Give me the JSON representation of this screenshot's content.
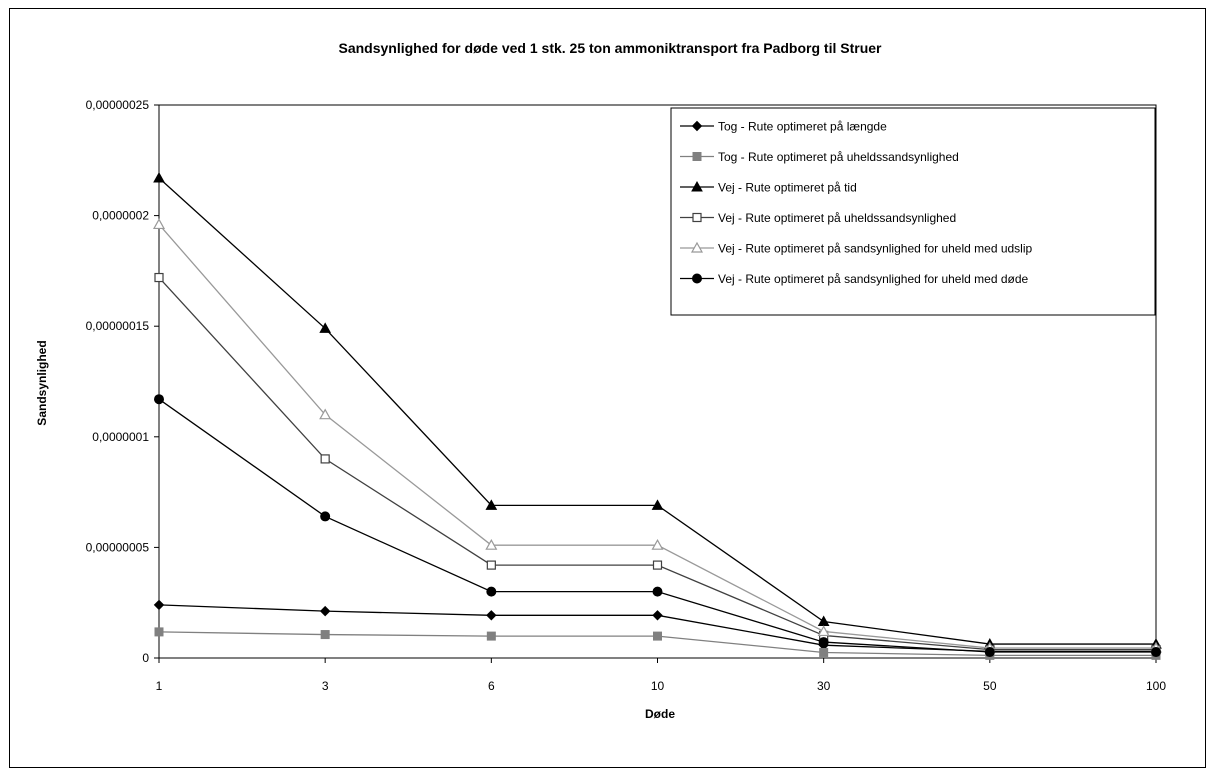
{
  "chart_data": {
    "type": "line",
    "title": "Sandsynlighed for døde ved 1 stk.  25 ton ammoniktransport fra Padborg til Struer",
    "xlabel": "Døde",
    "ylabel": "Sandsynlighed",
    "categories": [
      "1",
      "3",
      "6",
      "10",
      "30",
      "50",
      "100"
    ],
    "ylim": [
      0,
      2.5e-07
    ],
    "y_ticks": [
      "0",
      "0,00000005",
      "0,0000001",
      "0,00000015",
      "0,0000002",
      "0,00000025"
    ],
    "grid": false,
    "legend_position": "top-right",
    "series": [
      {
        "name": "Tog - Rute optimeret på længde",
        "marker": "diamond",
        "color": "#000000",
        "values": [
          2.4e-08,
          2.12e-08,
          1.93e-08,
          1.93e-08,
          5.8e-09,
          3e-09,
          3e-09
        ]
      },
      {
        "name": "Tog - Rute optimeret på uheldssandsynlighed",
        "marker": "square",
        "color": "#808080",
        "values": [
          1.18e-08,
          1.06e-08,
          9.9e-09,
          9.9e-09,
          2.5e-09,
          1.2e-09,
          1.2e-09
        ]
      },
      {
        "name": "Vej - Rute optimeret på tid",
        "marker": "triangle",
        "color": "#000000",
        "values": [
          2.17e-07,
          1.49e-07,
          6.9e-08,
          6.9e-08,
          1.65e-08,
          6.3e-09,
          6.3e-09
        ]
      },
      {
        "name": "Vej - Rute optimeret på uheldssandsynlighed",
        "marker": "square-open",
        "color": "#404040",
        "values": [
          1.72e-07,
          9e-08,
          4.2e-08,
          4.2e-08,
          1.02e-08,
          3.8e-09,
          3.8e-09
        ]
      },
      {
        "name": "Vej - Rute optimeret på sandsynlighed for uheld med udslip",
        "marker": "triangle-open",
        "color": "#999999",
        "values": [
          1.96e-07,
          1.1e-07,
          5.1e-08,
          5.1e-08,
          1.2e-08,
          4.5e-09,
          4.5e-09
        ]
      },
      {
        "name": "Vej - Rute optimeret på sandsynlighed for uheld med døde",
        "marker": "circle",
        "color": "#000000",
        "values": [
          1.17e-07,
          6.4e-08,
          3e-08,
          3e-08,
          7.2e-09,
          2.7e-09,
          2.7e-09
        ]
      }
    ]
  }
}
